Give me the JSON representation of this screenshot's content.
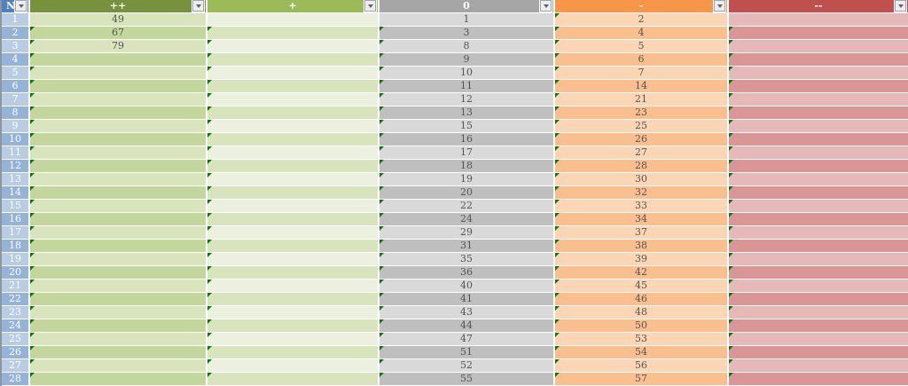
{
  "table": {
    "name": "rating-filter-table",
    "columns": [
      {
        "id": "n",
        "label": "N",
        "header_bg": "#4F81BD",
        "row_light": "#B8CCE4",
        "row_dark": "#95B3D7"
      },
      {
        "id": "plus2",
        "label": "++",
        "header_bg": "#76923C",
        "row_light": "#D7E4BC",
        "row_dark": "#C3D69B"
      },
      {
        "id": "plus1",
        "label": "+",
        "header_bg": "#9BBB59",
        "row_light": "#EBF1DE",
        "row_dark": "#D7E4BC"
      },
      {
        "id": "zero",
        "label": "0",
        "header_bg": "#A6A6A6",
        "row_light": "#D9D9D9",
        "row_dark": "#BFBFBF"
      },
      {
        "id": "minus1",
        "label": "-",
        "header_bg": "#F79646",
        "row_light": "#FCD5B4",
        "row_dark": "#FABF8F"
      },
      {
        "id": "minus2",
        "label": "--",
        "header_bg": "#C0504D",
        "row_light": "#E6B8B7",
        "row_dark": "#D99694"
      }
    ],
    "error_marker": {
      "color": "#0A7A0A",
      "columns": [
        "plus2",
        "plus1",
        "zero",
        "minus1",
        "minus2"
      ],
      "row1_columns": [
        "minus1"
      ]
    },
    "rows": [
      {
        "n": "1",
        "plus2": "49",
        "plus1": "",
        "zero": "1",
        "minus1": "2",
        "minus2": ""
      },
      {
        "n": "2",
        "plus2": "67",
        "plus1": "",
        "zero": "3",
        "minus1": "4",
        "minus2": ""
      },
      {
        "n": "3",
        "plus2": "79",
        "plus1": "",
        "zero": "8",
        "minus1": "5",
        "minus2": ""
      },
      {
        "n": "4",
        "plus2": "",
        "plus1": "",
        "zero": "9",
        "minus1": "6",
        "minus2": ""
      },
      {
        "n": "5",
        "plus2": "",
        "plus1": "",
        "zero": "10",
        "minus1": "7",
        "minus2": ""
      },
      {
        "n": "6",
        "plus2": "",
        "plus1": "",
        "zero": "11",
        "minus1": "14",
        "minus2": ""
      },
      {
        "n": "7",
        "plus2": "",
        "plus1": "",
        "zero": "12",
        "minus1": "21",
        "minus2": ""
      },
      {
        "n": "8",
        "plus2": "",
        "plus1": "",
        "zero": "13",
        "minus1": "23",
        "minus2": ""
      },
      {
        "n": "9",
        "plus2": "",
        "plus1": "",
        "zero": "15",
        "minus1": "25",
        "minus2": ""
      },
      {
        "n": "10",
        "plus2": "",
        "plus1": "",
        "zero": "16",
        "minus1": "26",
        "minus2": ""
      },
      {
        "n": "11",
        "plus2": "",
        "plus1": "",
        "zero": "17",
        "minus1": "27",
        "minus2": ""
      },
      {
        "n": "12",
        "plus2": "",
        "plus1": "",
        "zero": "18",
        "minus1": "28",
        "minus2": ""
      },
      {
        "n": "13",
        "plus2": "",
        "plus1": "",
        "zero": "19",
        "minus1": "30",
        "minus2": ""
      },
      {
        "n": "14",
        "plus2": "",
        "plus1": "",
        "zero": "20",
        "minus1": "32",
        "minus2": ""
      },
      {
        "n": "15",
        "plus2": "",
        "plus1": "",
        "zero": "22",
        "minus1": "33",
        "minus2": ""
      },
      {
        "n": "16",
        "plus2": "",
        "plus1": "",
        "zero": "24",
        "minus1": "34",
        "minus2": ""
      },
      {
        "n": "17",
        "plus2": "",
        "plus1": "",
        "zero": "29",
        "minus1": "37",
        "minus2": ""
      },
      {
        "n": "18",
        "plus2": "",
        "plus1": "",
        "zero": "31",
        "minus1": "38",
        "minus2": ""
      },
      {
        "n": "19",
        "plus2": "",
        "plus1": "",
        "zero": "35",
        "minus1": "39",
        "minus2": ""
      },
      {
        "n": "20",
        "plus2": "",
        "plus1": "",
        "zero": "36",
        "minus1": "42",
        "minus2": ""
      },
      {
        "n": "21",
        "plus2": "",
        "plus1": "",
        "zero": "40",
        "minus1": "45",
        "minus2": ""
      },
      {
        "n": "22",
        "plus2": "",
        "plus1": "",
        "zero": "41",
        "minus1": "46",
        "minus2": ""
      },
      {
        "n": "23",
        "plus2": "",
        "plus1": "",
        "zero": "43",
        "minus1": "48",
        "minus2": ""
      },
      {
        "n": "24",
        "plus2": "",
        "plus1": "",
        "zero": "44",
        "minus1": "50",
        "minus2": ""
      },
      {
        "n": "25",
        "plus2": "",
        "plus1": "",
        "zero": "47",
        "minus1": "53",
        "minus2": ""
      },
      {
        "n": "26",
        "plus2": "",
        "plus1": "",
        "zero": "51",
        "minus1": "54",
        "minus2": ""
      },
      {
        "n": "27",
        "plus2": "",
        "plus1": "",
        "zero": "52",
        "minus1": "56",
        "minus2": ""
      },
      {
        "n": "28",
        "plus2": "",
        "plus1": "",
        "zero": "55",
        "minus1": "57",
        "minus2": ""
      }
    ]
  }
}
